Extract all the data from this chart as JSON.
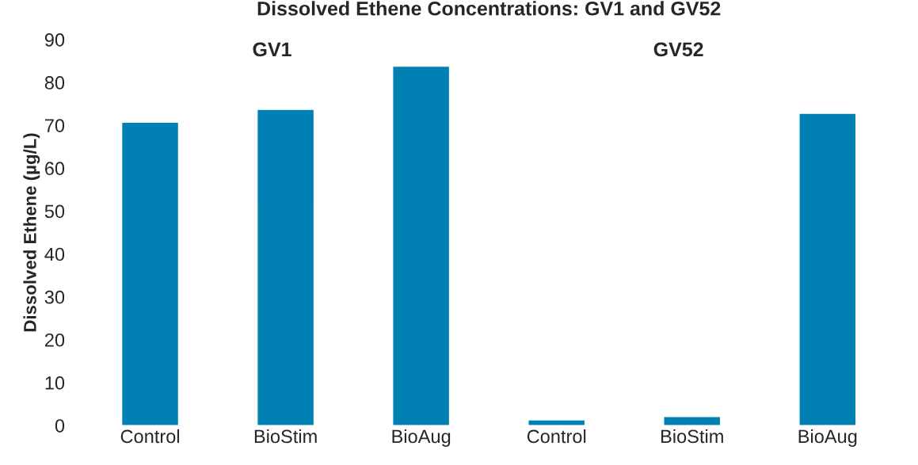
{
  "chart_data": {
    "type": "bar",
    "title": "Dissolved Ethene Concentrations: GV1 and GV52",
    "ylabel": "Dissolved Ethene (µg/L)",
    "categories": [
      "Control",
      "BioStim",
      "BioAug",
      "Control",
      "BioStim",
      "BioAug"
    ],
    "values": [
      70.7,
      73.7,
      83.8,
      1.3,
      2.1,
      72.8
    ],
    "color": "#0080b3",
    "annotations": [
      "GV1",
      "GV52"
    ],
    "ylim": [
      0,
      90
    ],
    "yticks": [
      0,
      10,
      20,
      30,
      40,
      50,
      60,
      70,
      80,
      90
    ],
    "grid": false
  }
}
